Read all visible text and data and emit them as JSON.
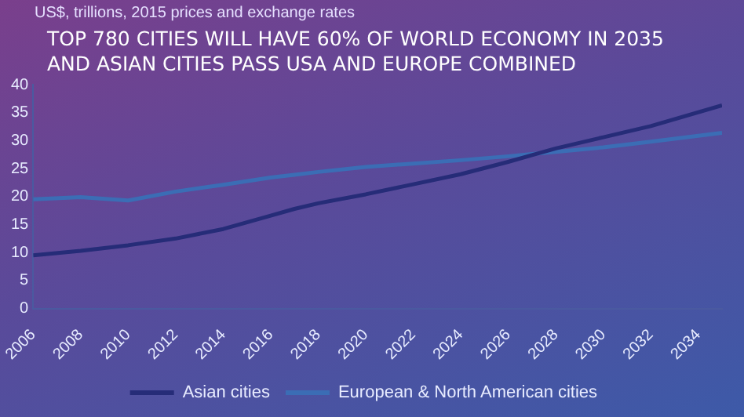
{
  "chart_data": {
    "type": "line",
    "title": "TOP 780 CITIES WILL HAVE 60% OF WORLD ECONOMY IN 2035 AND ASIAN CITIES PASS USA AND EUROPE COMBINED",
    "ylabel": "US$, trillions, 2015 prices and exchange rates",
    "x": [
      2006,
      2008,
      2010,
      2012,
      2014,
      2016,
      2017,
      2018,
      2020,
      2022,
      2024,
      2026,
      2027,
      2028,
      2030,
      2032,
      2035
    ],
    "series": [
      {
        "name": "Asian cities",
        "color": "#262c78",
        "values": [
          9.5,
          10.3,
          11.3,
          12.5,
          14.2,
          16.6,
          17.8,
          18.8,
          20.4,
          22.2,
          24.0,
          26.2,
          27.4,
          28.6,
          30.6,
          32.6,
          36.3
        ]
      },
      {
        "name": "European & North American cities",
        "color": "#3b6db5",
        "values": [
          19.5,
          19.9,
          19.3,
          20.9,
          22.1,
          23.4,
          23.9,
          24.4,
          25.3,
          25.9,
          26.5,
          27.2,
          27.6,
          28.0,
          28.8,
          29.8,
          31.4
        ]
      }
    ],
    "xlim": [
      2006,
      2035
    ],
    "xticks": [
      2006,
      2008,
      2010,
      2012,
      2014,
      2016,
      2018,
      2020,
      2022,
      2024,
      2026,
      2028,
      2030,
      2032,
      2034
    ],
    "ylim": [
      0,
      40
    ],
    "yticks": [
      0,
      5,
      10,
      15,
      20,
      25,
      30,
      35,
      40
    ],
    "grid": false,
    "legend": "bottom",
    "marker": "none",
    "line_style": "solid"
  }
}
